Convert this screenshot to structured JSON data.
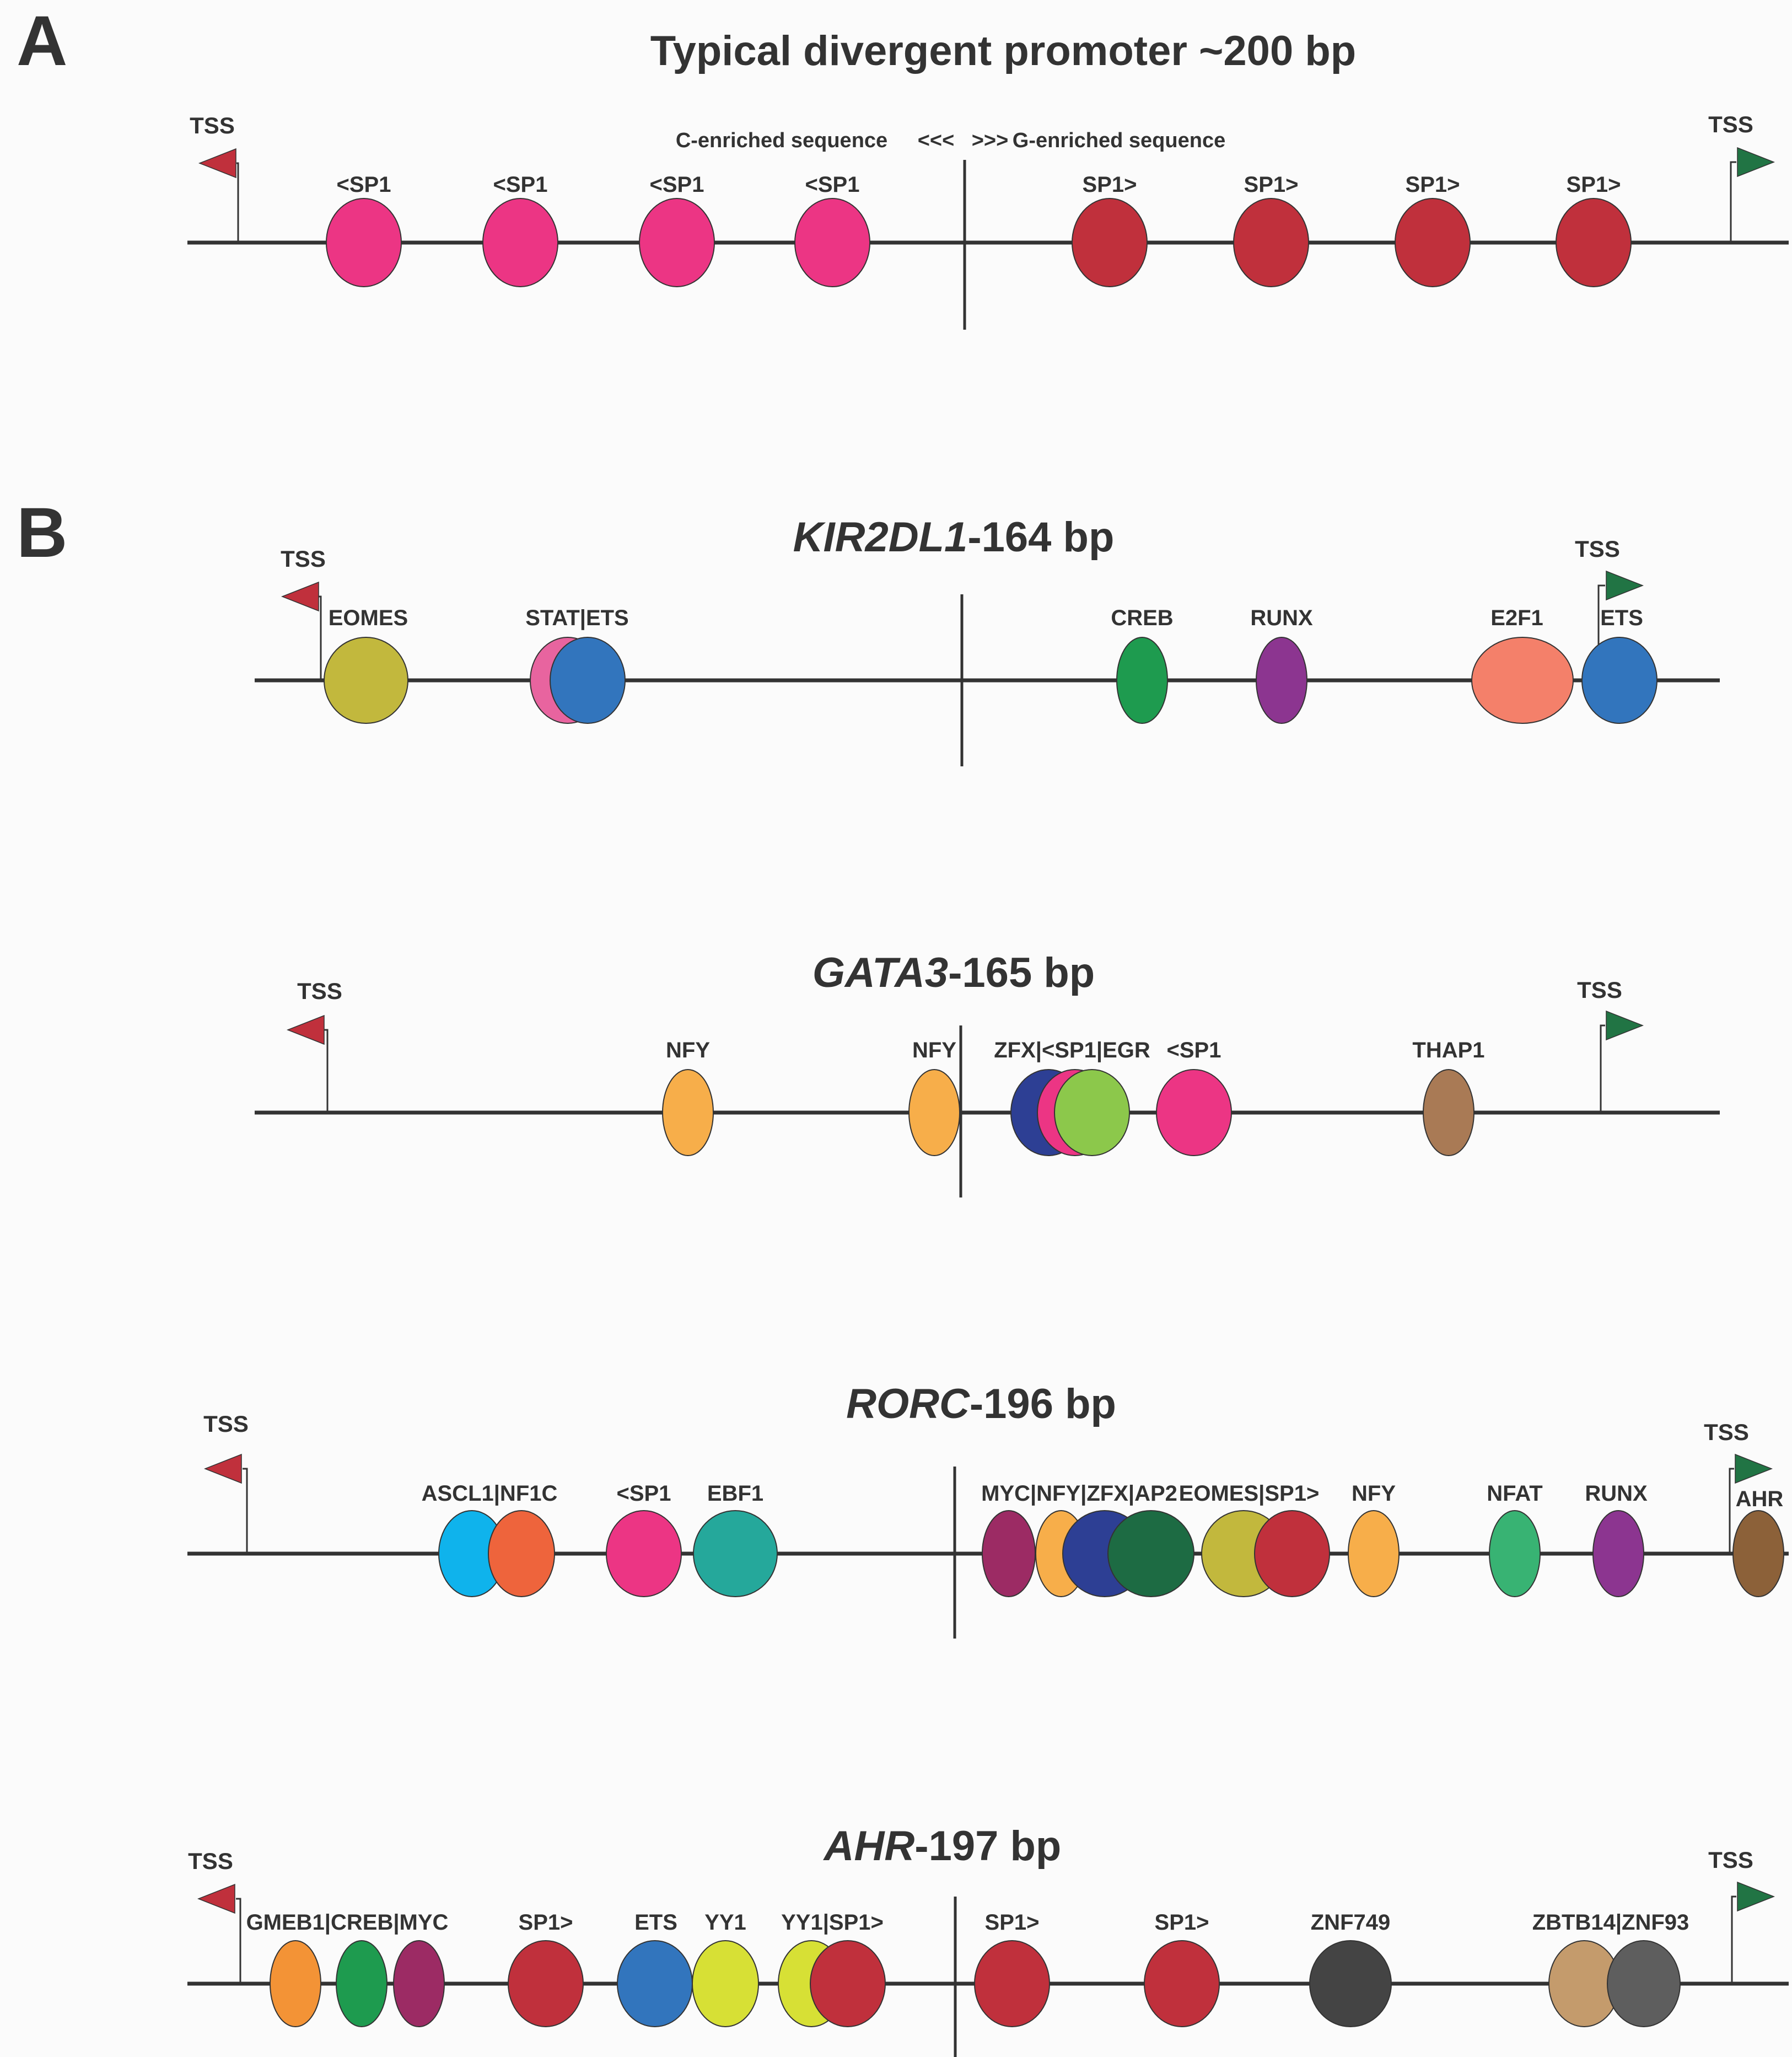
{
  "panelA": {
    "letter": "A",
    "title": "Typical divergent promoter ~200 bp",
    "tss_left": "TSS",
    "tss_right": "TSS",
    "c_enriched": "C-enriched sequence",
    "arrows_left": "<<<",
    "arrows_right": ">>>",
    "g_enriched": "G-enriched sequence",
    "sites": [
      {
        "label": "<SP1",
        "color": "#ec3584"
      },
      {
        "label": "<SP1",
        "color": "#ec3584"
      },
      {
        "label": "<SP1",
        "color": "#ec3584"
      },
      {
        "label": "<SP1",
        "color": "#ec3584"
      },
      {
        "label": "SP1>",
        "color": "#c0303c"
      },
      {
        "label": "SP1>",
        "color": "#c0303c"
      },
      {
        "label": "SP1>",
        "color": "#c0303c"
      },
      {
        "label": "SP1>",
        "color": "#c0303c"
      }
    ]
  },
  "panelB": {
    "letter": "B",
    "promoters": [
      {
        "gene": "KIR2DL1",
        "suffix": "-164 bp",
        "tss_left": "TSS",
        "tss_right": "TSS",
        "labels": [
          "EOMES",
          "STAT|ETS",
          "CREB",
          "RUNX",
          "E2F1",
          "ETS"
        ],
        "site_colors": [
          "#c2b83d",
          "#e8649f",
          "#3275bd",
          "#1e9b4f",
          "#8c3590",
          "#f4806a",
          "#3275bd"
        ]
      },
      {
        "gene": "GATA3",
        "suffix": "-165 bp",
        "tss_left": "TSS",
        "tss_right": "TSS",
        "labels": [
          "NFY",
          "NFY",
          "ZFX|<SP1|EGR",
          "<SP1",
          "THAP1"
        ],
        "site_colors": [
          "#f7ae4a",
          "#f7ae4a",
          "#2d3f94",
          "#ec3584",
          "#8cc84b",
          "#ec3584",
          "#a97a55"
        ]
      },
      {
        "gene": "RORC",
        "suffix": "-196 bp",
        "tss_left": "TSS",
        "tss_right": "TSS",
        "labels": [
          "ASCL1|NF1C",
          "<SP1",
          "EBF1",
          "MYC|NFY|ZFX|AP2",
          "EOMES|SP1>",
          "NFY",
          "NFAT",
          "RUNX",
          "AHR"
        ],
        "site_colors": [
          "#0fb3ec",
          "#ee643c",
          "#ec3584",
          "#25a89b",
          "#9c2b64",
          "#f7ae4a",
          "#2d3f94",
          "#1d6b43",
          "#c2b83d",
          "#c0303c",
          "#f7ae4a",
          "#38b373",
          "#8c3590",
          "#8c6139"
        ]
      },
      {
        "gene": "AHR",
        "suffix": "-197 bp",
        "tss_left": "TSS",
        "tss_right": "TSS",
        "labels": [
          "GMEB1|CREB|MYC",
          "SP1>",
          "ETS",
          "YY1",
          "YY1|SP1>",
          "SP1>",
          "SP1>",
          "ZNF749",
          "ZBTB14|ZNF93"
        ],
        "site_colors": [
          "#f39336",
          "#1e9b4f",
          "#9c2b64",
          "#c0303c",
          "#3275bd",
          "#d7e035",
          "#d7e035",
          "#c0303c",
          "#c0303c",
          "#c0303c",
          "#444444",
          "#c49b6c",
          "#5e5e5e"
        ]
      }
    ]
  },
  "colors": {
    "tss_left_flag": "#c0303c",
    "tss_right_flag": "#217444",
    "line": "#333333"
  }
}
